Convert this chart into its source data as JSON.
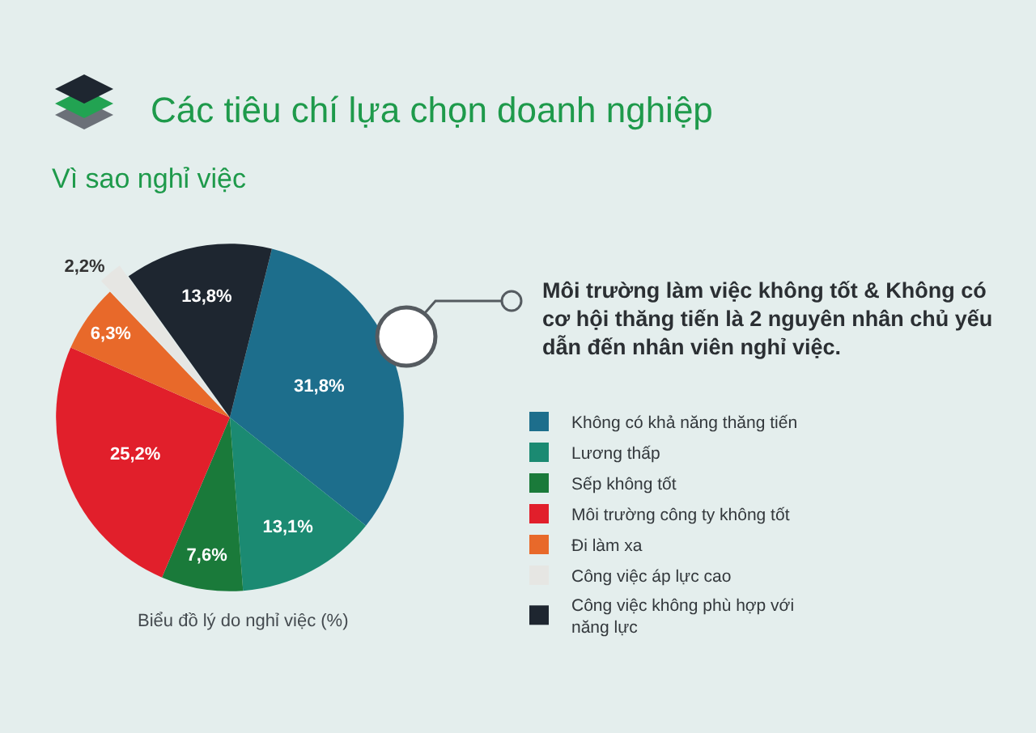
{
  "chart_data": {
    "type": "pie",
    "title": "Các tiêu chí lựa chọn doanh nghiệp",
    "subtitle": "Vì sao nghỉ việc",
    "categories": [
      "Không có khả năng thăng tiến",
      "Lương thấp",
      "Sếp không tốt",
      "Môi trường công ty không tốt",
      "Đi làm xa",
      "Công việc áp lực cao",
      "Công việc không phù hợp với năng lực"
    ],
    "values": [
      31.8,
      13.1,
      7.6,
      25.2,
      6.3,
      2.2,
      13.8
    ],
    "colors": [
      "#1d6e8c",
      "#1b8a72",
      "#1a7a3a",
      "#e11f2b",
      "#e8692a",
      "#e6e6e3",
      "#1e2630"
    ],
    "value_labels": [
      "31,8%",
      "13,1%",
      "7,6%",
      "25,2%",
      "6,3%",
      "2,2%",
      "13,8%"
    ],
    "legend": "right",
    "annotations": [
      "Môi trường làm việc không tốt & Không có cơ hội thăng tiến là 2 nguyên nhân chủ yếu dẫn đến nhân viên nghỉ việc.",
      "Biểu đồ lý do nghỉ việc (%)"
    ]
  }
}
